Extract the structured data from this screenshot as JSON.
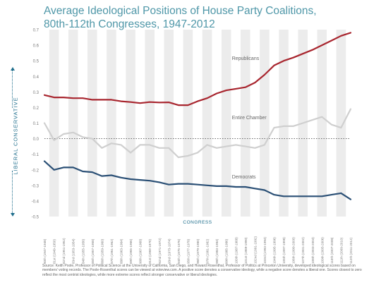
{
  "title_line1": "Average Ideological Positions of House Party Coalitions,",
  "title_line2": "80th-112th Congresses, 1947-2012",
  "yaxis_title": "LIBERAL  CONSERVATIVE",
  "source_text": "Source: Keith Poole, Professor of Political Science at the University of California, San Diego, and Howard Rosenthal, Professor of Politics at Princeton University, developed ideological scores based on members' voting records. The Poole-Rosenthal scores can be viewed at voteview.com. A positive score denotes a conservative ideology, while a negative score denotes a liberal one. Scores closest to zero reflect the most centrist ideologies, while more extreme scores reflect stronger conservative or liberal ideologies.",
  "colors": {
    "republicans": "#a8252e",
    "entire_chamber": "#cfcfcf",
    "democrats": "#2a4f75",
    "band": "#ececec",
    "axis_text": "#7a7a7a"
  },
  "chart_data": {
    "type": "line",
    "xlabel": "CONGRESS",
    "ylim": [
      -0.5,
      0.7
    ],
    "yticks": [
      "0.7",
      "0.6",
      "0.5",
      "0.4",
      "0.3",
      "0.2",
      "0.1",
      "0.0",
      "-0.1",
      "-0.2",
      "-0.3",
      "-0.4",
      "-0.5"
    ],
    "categories": [
      "80th (1947-1948)",
      "81st (1949-1950)",
      "82nd (1951-1952)",
      "83rd (1953-1954)",
      "84th (1955-1956)",
      "85th (1957-1958)",
      "86th (1959-1960)",
      "87th (1961-1962)",
      "88th (1963-1964)",
      "89th (1965-1966)",
      "90th (1967-1968)",
      "91st (1969-1970)",
      "92nd (1971-1972)",
      "93rd (1973-1974)",
      "94th (1975-1976)",
      "95th (1977-1978)",
      "96th (1979-1980)",
      "97th (1981-1982)",
      "98th (1983-1984)",
      "99th (1985-1986)",
      "100th (1987-1988)",
      "101st (1989-1990)",
      "102nd (1991-1992)",
      "103rd (1993-1994)",
      "104th (1995-1996)",
      "105th (1997-1998)",
      "106th (1999-2000)",
      "107th (2001-2002)",
      "108th (2003-2004)",
      "109th (2005-2006)",
      "110th (2007-2008)",
      "111th (2009-2010)",
      "112th (2011-2012)"
    ],
    "series": [
      {
        "name": "Republicans",
        "values": [
          0.28,
          0.265,
          0.265,
          0.26,
          0.26,
          0.25,
          0.25,
          0.25,
          0.24,
          0.235,
          0.228,
          0.235,
          0.232,
          0.233,
          0.215,
          0.215,
          0.24,
          0.26,
          0.29,
          0.31,
          0.32,
          0.33,
          0.36,
          0.41,
          0.47,
          0.5,
          0.52,
          0.545,
          0.57,
          0.6,
          0.63,
          0.66,
          0.68
        ]
      },
      {
        "name": "Entire Chamber",
        "values": [
          0.1,
          -0.01,
          0.03,
          0.04,
          0.01,
          0.0,
          -0.06,
          -0.03,
          -0.04,
          -0.09,
          -0.04,
          -0.04,
          -0.06,
          -0.06,
          -0.12,
          -0.11,
          -0.09,
          -0.04,
          -0.06,
          -0.05,
          -0.04,
          -0.05,
          -0.06,
          -0.04,
          0.07,
          0.08,
          0.08,
          0.1,
          0.12,
          0.14,
          0.09,
          0.07,
          0.19
        ]
      },
      {
        "name": "Democrats",
        "values": [
          -0.145,
          -0.2,
          -0.185,
          -0.185,
          -0.21,
          -0.215,
          -0.24,
          -0.235,
          -0.25,
          -0.26,
          -0.265,
          -0.27,
          -0.28,
          -0.295,
          -0.29,
          -0.29,
          -0.295,
          -0.3,
          -0.305,
          -0.305,
          -0.31,
          -0.31,
          -0.32,
          -0.33,
          -0.36,
          -0.37,
          -0.37,
          -0.37,
          -0.37,
          -0.37,
          -0.36,
          -0.35,
          -0.39
        ]
      }
    ]
  }
}
